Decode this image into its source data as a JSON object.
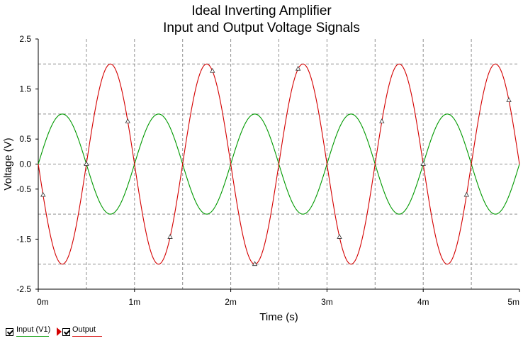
{
  "chart_data": {
    "type": "line",
    "title": "Ideal Inverting Amplifier",
    "subtitle": "Input and Output Voltage Signals",
    "xlabel": "Time (s)",
    "ylabel": "Voltage (V)",
    "xlim": [
      0,
      0.005
    ],
    "ylim": [
      -2.5,
      2.5
    ],
    "x_ticks": [
      {
        "value": 0,
        "label": "0m"
      },
      {
        "value": 0.001,
        "label": "1m"
      },
      {
        "value": 0.002,
        "label": "2m"
      },
      {
        "value": 0.003,
        "label": "3m"
      },
      {
        "value": 0.004,
        "label": "4m"
      },
      {
        "value": 0.005,
        "label": "5m"
      }
    ],
    "y_ticks": [
      {
        "value": 2.5,
        "label": "2.5"
      },
      {
        "value": 1.5,
        "label": "1.5"
      },
      {
        "value": 0.5,
        "label": "0.5"
      },
      {
        "value": 0.0,
        "label": "0.0"
      },
      {
        "value": -0.5,
        "label": "-0.5"
      },
      {
        "value": -1.5,
        "label": "-1.5"
      },
      {
        "value": -2.5,
        "label": "-2.5"
      }
    ],
    "grid_y": [
      2.0,
      1.0,
      0.0,
      -1.0,
      -2.0
    ],
    "grid_x": [
      0.0005,
      0.001,
      0.0015,
      0.002,
      0.0025,
      0.003,
      0.0035,
      0.004,
      0.0045
    ],
    "grid": true,
    "legend_placement": "bottom-left",
    "series": [
      {
        "name": "Input (V1)",
        "color": "#009900",
        "frequency_hz": 1000,
        "amplitude": 1.0,
        "phase": "sine"
      },
      {
        "name": "Output",
        "color": "#d40000",
        "frequency_hz": 1000,
        "amplitude": 2.0,
        "phase": "inverted sine",
        "markers": [
          5e-05,
          0.0005,
          0.00093,
          0.00137,
          0.00181,
          0.00225,
          0.0027,
          0.00313,
          0.00357,
          0.004,
          0.00445,
          0.00489
        ]
      }
    ]
  }
}
